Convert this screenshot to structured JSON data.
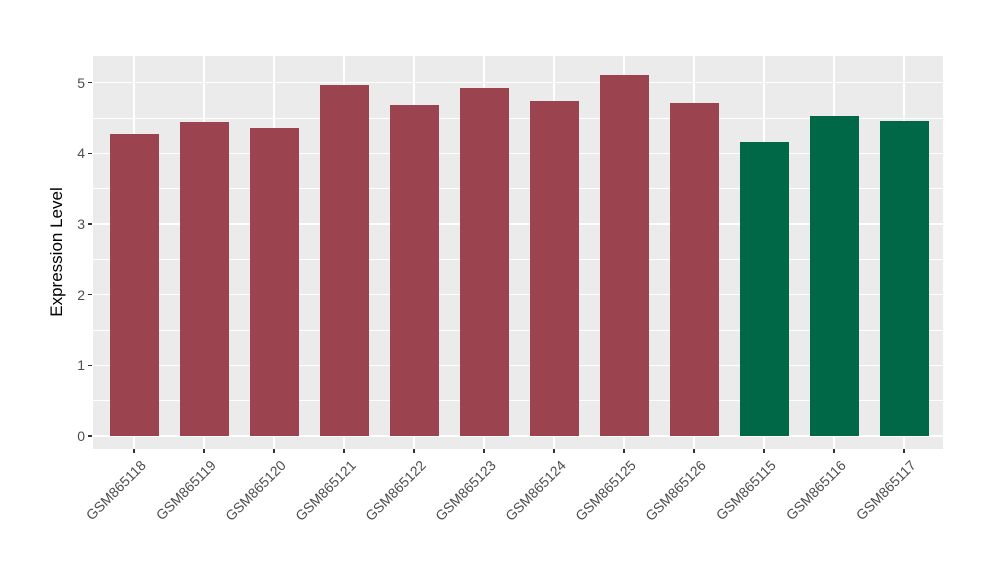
{
  "chart_data": {
    "type": "bar",
    "title": "",
    "xlabel": "",
    "ylabel": "Expression Level",
    "categories": [
      "GSM865118",
      "GSM865119",
      "GSM865120",
      "GSM865121",
      "GSM865122",
      "GSM865123",
      "GSM865124",
      "GSM865125",
      "GSM865126",
      "GSM865115",
      "GSM865116",
      "GSM865117"
    ],
    "values": [
      4.28,
      4.45,
      4.36,
      4.97,
      4.68,
      4.92,
      4.74,
      5.11,
      4.71,
      4.16,
      4.53,
      4.46
    ],
    "bar_colors": [
      "#9B4450",
      "#9B4450",
      "#9B4450",
      "#9B4450",
      "#9B4450",
      "#9B4450",
      "#9B4450",
      "#9B4450",
      "#9B4450",
      "#006747",
      "#006747",
      "#006747"
    ],
    "group_color_red": "#9B4450",
    "group_color_green": "#006747",
    "yticks": [
      0,
      1,
      2,
      3,
      4,
      5
    ],
    "minor_yticks": [
      0.5,
      1.5,
      2.5,
      3.5,
      4.5
    ],
    "ylim": [
      -0.17,
      5.38
    ],
    "grid": "on",
    "legend": "none",
    "panel_bg": "#EBEBEB",
    "grid_color": "#FFFFFF",
    "axis_text_color": "#4D4D4D"
  }
}
